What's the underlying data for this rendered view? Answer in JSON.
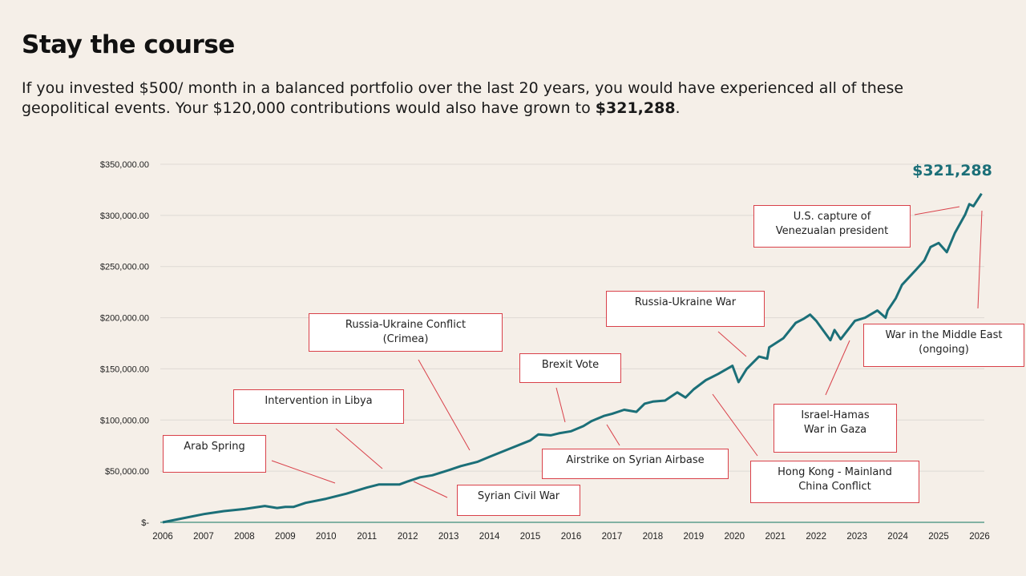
{
  "header": {
    "title": "Stay the course",
    "subtitle_pre": "If you invested $500/ month in a balanced portfolio over the last 20 years, you would have experienced all of these geopolitical events. Your $120,000 contributions would also have grown to ",
    "subtitle_bold": "$321,288",
    "subtitle_post": "."
  },
  "chart_data": {
    "type": "line",
    "title": "",
    "xlabel": "",
    "ylabel": "",
    "xlim": [
      2006,
      2026
    ],
    "ylim": [
      0,
      350000
    ],
    "grid": true,
    "line_color": "#1b6f78",
    "x_ticks": [
      "2006",
      "2007",
      "2008",
      "2009",
      "2010",
      "2011",
      "2012",
      "2013",
      "2014",
      "2015",
      "2016",
      "2017",
      "2018",
      "2019",
      "2020",
      "2021",
      "2022",
      "2023",
      "2024",
      "2025",
      "2026"
    ],
    "y_ticks": [
      {
        "v": 0,
        "label": "$-"
      },
      {
        "v": 50000,
        "label": "$50,000.00"
      },
      {
        "v": 100000,
        "label": "$100,000.00"
      },
      {
        "v": 150000,
        "label": "$150,000.00"
      },
      {
        "v": 200000,
        "label": "$200,000.00"
      },
      {
        "v": 250000,
        "label": "$250,000.00"
      },
      {
        "v": 300000,
        "label": "$300,000.00"
      },
      {
        "v": 350000,
        "label": "$350,000.00"
      }
    ],
    "end_label": "$321,288",
    "series": [
      {
        "x": [
          2006.0,
          2006.5,
          2007.0,
          2007.5,
          2008.0,
          2008.5,
          2008.8,
          2009.0,
          2009.2,
          2009.5,
          2010.0,
          2010.5,
          2011.0,
          2011.3,
          2011.8,
          2012.0,
          2012.3,
          2012.6,
          2013.0,
          2013.3,
          2013.7,
          2014.0,
          2014.5,
          2015.0,
          2015.2,
          2015.5,
          2015.7,
          2016.0,
          2016.3,
          2016.5,
          2016.8,
          2017.0,
          2017.3,
          2017.6,
          2017.8,
          2018.0,
          2018.3,
          2018.6,
          2018.8,
          2019.0,
          2019.3,
          2019.6,
          2019.95,
          2020.1,
          2020.3,
          2020.6,
          2020.8,
          2020.85,
          2021.2,
          2021.5,
          2021.7,
          2021.85,
          2022.0,
          2022.35,
          2022.45,
          2022.6,
          2022.95,
          2023.2,
          2023.5,
          2023.7,
          2023.75,
          2023.95,
          2024.1,
          2024.45,
          2024.65,
          2024.8,
          2025.0,
          2025.2,
          2025.4,
          2025.65,
          2025.75,
          2025.85,
          2026.05
        ],
        "y": [
          0,
          4000,
          8000,
          11000,
          13000,
          16000,
          14000,
          15000,
          15000,
          19000,
          23000,
          28000,
          34000,
          37000,
          37000,
          40000,
          44000,
          46000,
          51000,
          55000,
          59000,
          64000,
          72000,
          80000,
          86000,
          85000,
          87000,
          89000,
          94000,
          99000,
          104000,
          106000,
          110000,
          108000,
          116000,
          118000,
          119000,
          127000,
          122000,
          130000,
          139000,
          145000,
          153000,
          137000,
          150000,
          162000,
          160000,
          171000,
          180000,
          195000,
          199000,
          203000,
          197000,
          178000,
          188000,
          179000,
          197000,
          200000,
          207000,
          200000,
          207000,
          219000,
          232000,
          247000,
          256000,
          269000,
          273000,
          264000,
          283000,
          301000,
          311000,
          309000,
          321288
        ]
      }
    ]
  },
  "annotations": [
    {
      "text": "Arab Spring"
    },
    {
      "text": "Intervention in Libya"
    },
    {
      "text": "Russia-Ukraine Conflict (Crimea)"
    },
    {
      "text": "Syrian Civil War"
    },
    {
      "text": "Brexit Vote"
    },
    {
      "text": "Airstrike on Syrian Airbase"
    },
    {
      "text": "Russia-Ukraine War"
    },
    {
      "text": "Hong Kong - Mainland China Conflict"
    },
    {
      "text": "Israel-Hamas War in Gaza"
    },
    {
      "text": "U.S. capture of Venezualan president"
    },
    {
      "text": "War in the Middle East (ongoing)"
    }
  ]
}
